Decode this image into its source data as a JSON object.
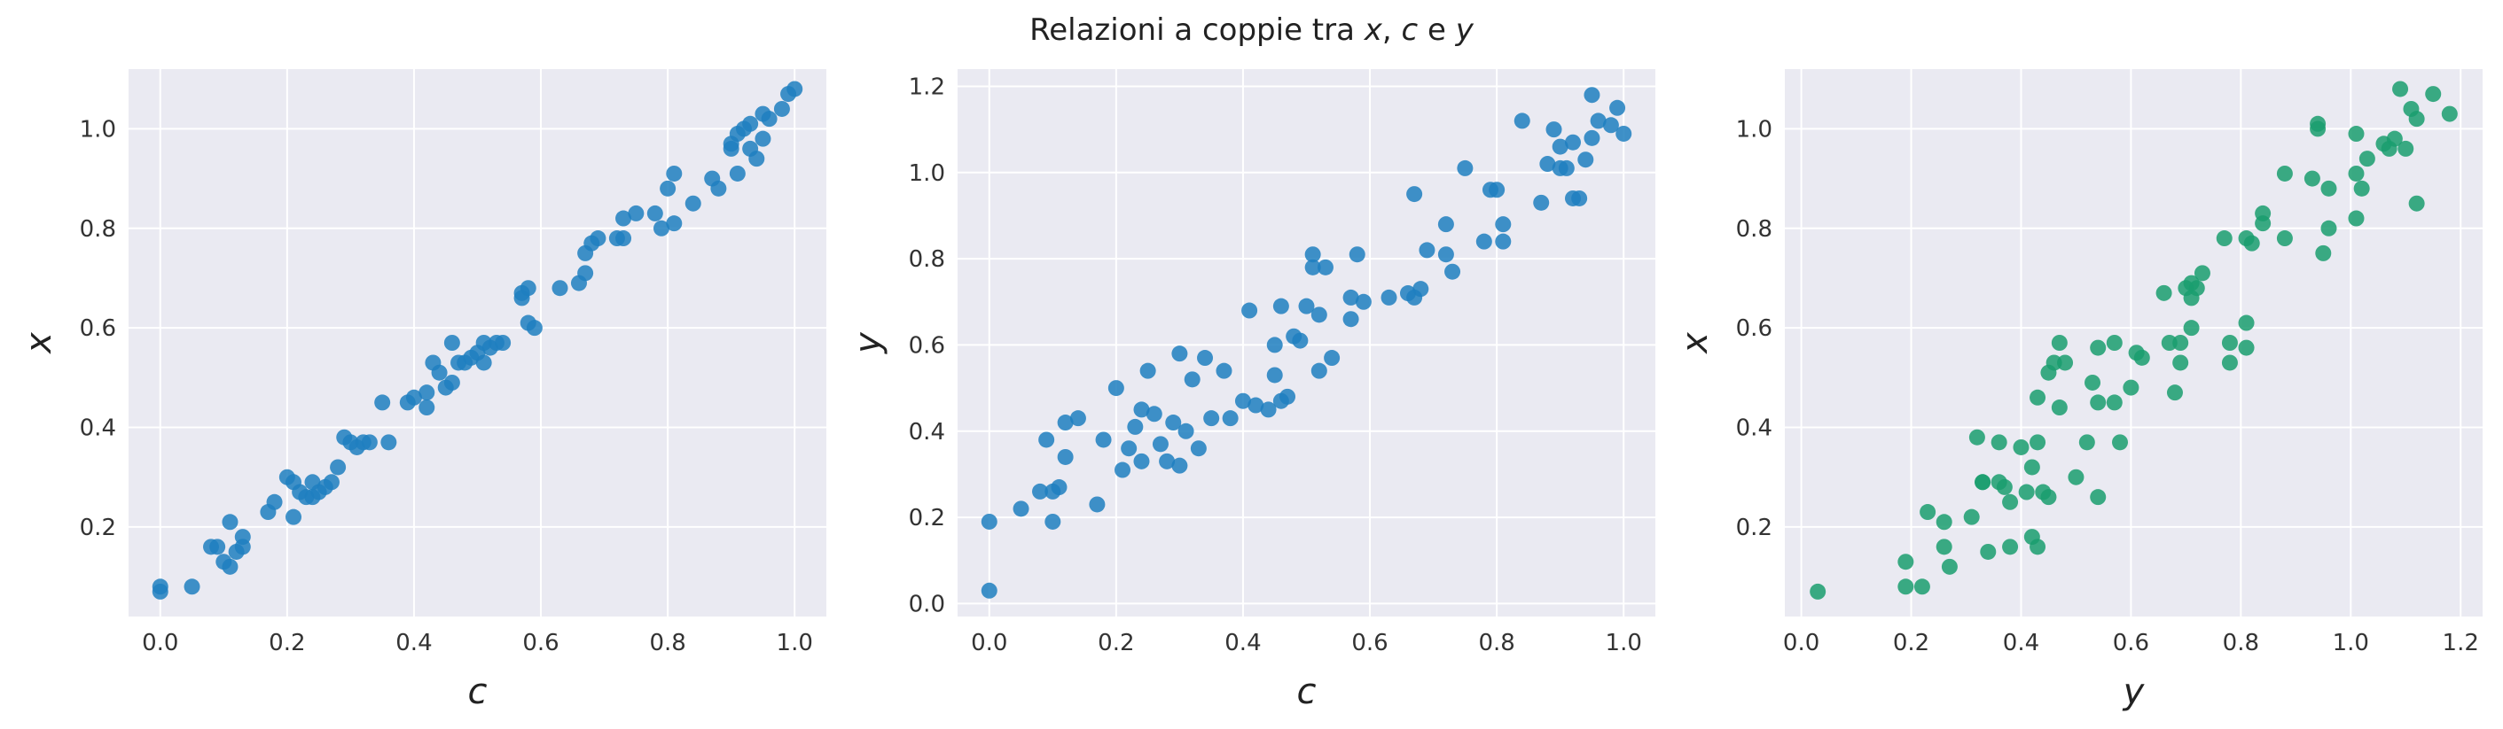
{
  "title": {
    "prefix": "Relazioni a coppie tra ",
    "var1": "x",
    "sep1": ", ",
    "var2": "c",
    "sep2": " e ",
    "var3": "y"
  },
  "colors": {
    "background": "#eaeaf2",
    "grid": "#ffffff",
    "blue": "#1f7fbf",
    "green": "#1a9e6e"
  },
  "chart_data": [
    {
      "type": "scatter",
      "title": "",
      "xlabel": "c",
      "ylabel": "x",
      "xlim": [
        -0.05,
        1.05
      ],
      "ylim": [
        0.02,
        1.12
      ],
      "xticks": [
        "0.0",
        "0.2",
        "0.4",
        "0.6",
        "0.8",
        "1.0"
      ],
      "yticks": [
        "0.2",
        "0.4",
        "0.6",
        "0.8",
        "1.0"
      ],
      "color": "#1f7fbf",
      "grid": true,
      "points": [
        [
          0.0,
          0.07
        ],
        [
          0.0,
          0.08
        ],
        [
          0.05,
          0.08
        ],
        [
          0.08,
          0.16
        ],
        [
          0.09,
          0.16
        ],
        [
          0.1,
          0.13
        ],
        [
          0.11,
          0.21
        ],
        [
          0.11,
          0.12
        ],
        [
          0.12,
          0.15
        ],
        [
          0.13,
          0.18
        ],
        [
          0.13,
          0.16
        ],
        [
          0.17,
          0.23
        ],
        [
          0.18,
          0.25
        ],
        [
          0.2,
          0.3
        ],
        [
          0.21,
          0.22
        ],
        [
          0.21,
          0.29
        ],
        [
          0.22,
          0.27
        ],
        [
          0.23,
          0.26
        ],
        [
          0.24,
          0.29
        ],
        [
          0.24,
          0.26
        ],
        [
          0.25,
          0.27
        ],
        [
          0.26,
          0.28
        ],
        [
          0.27,
          0.29
        ],
        [
          0.28,
          0.32
        ],
        [
          0.29,
          0.38
        ],
        [
          0.3,
          0.37
        ],
        [
          0.31,
          0.36
        ],
        [
          0.32,
          0.37
        ],
        [
          0.33,
          0.37
        ],
        [
          0.35,
          0.45
        ],
        [
          0.36,
          0.37
        ],
        [
          0.39,
          0.45
        ],
        [
          0.4,
          0.46
        ],
        [
          0.42,
          0.44
        ],
        [
          0.42,
          0.47
        ],
        [
          0.43,
          0.53
        ],
        [
          0.44,
          0.51
        ],
        [
          0.45,
          0.48
        ],
        [
          0.46,
          0.49
        ],
        [
          0.46,
          0.57
        ],
        [
          0.47,
          0.53
        ],
        [
          0.48,
          0.53
        ],
        [
          0.49,
          0.54
        ],
        [
          0.5,
          0.55
        ],
        [
          0.51,
          0.57
        ],
        [
          0.51,
          0.53
        ],
        [
          0.52,
          0.56
        ],
        [
          0.53,
          0.57
        ],
        [
          0.54,
          0.57
        ],
        [
          0.57,
          0.66
        ],
        [
          0.57,
          0.67
        ],
        [
          0.58,
          0.61
        ],
        [
          0.58,
          0.68
        ],
        [
          0.59,
          0.6
        ],
        [
          0.63,
          0.68
        ],
        [
          0.66,
          0.69
        ],
        [
          0.67,
          0.75
        ],
        [
          0.67,
          0.71
        ],
        [
          0.68,
          0.77
        ],
        [
          0.69,
          0.78
        ],
        [
          0.72,
          0.78
        ],
        [
          0.73,
          0.78
        ],
        [
          0.73,
          0.82
        ],
        [
          0.75,
          0.83
        ],
        [
          0.78,
          0.83
        ],
        [
          0.79,
          0.8
        ],
        [
          0.8,
          0.88
        ],
        [
          0.81,
          0.81
        ],
        [
          0.81,
          0.91
        ],
        [
          0.84,
          0.85
        ],
        [
          0.87,
          0.9
        ],
        [
          0.88,
          0.88
        ],
        [
          0.9,
          0.96
        ],
        [
          0.9,
          0.97
        ],
        [
          0.91,
          0.91
        ],
        [
          0.91,
          0.99
        ],
        [
          0.92,
          1.0
        ],
        [
          0.93,
          0.96
        ],
        [
          0.93,
          1.01
        ],
        [
          0.94,
          0.94
        ],
        [
          0.95,
          0.98
        ],
        [
          0.95,
          1.03
        ],
        [
          0.96,
          1.02
        ],
        [
          0.98,
          1.04
        ],
        [
          0.99,
          1.07
        ],
        [
          1.0,
          1.08
        ]
      ]
    },
    {
      "type": "scatter",
      "title": "",
      "xlabel": "c",
      "ylabel": "y",
      "xlim": [
        -0.05,
        1.05
      ],
      "ylim": [
        -0.03,
        1.24
      ],
      "xticks": [
        "0.0",
        "0.2",
        "0.4",
        "0.6",
        "0.8",
        "1.0"
      ],
      "yticks": [
        "0.0",
        "0.2",
        "0.4",
        "0.6",
        "0.8",
        "1.0",
        "1.2"
      ],
      "color": "#1f7fbf",
      "grid": true,
      "points": [
        [
          0.0,
          0.03
        ],
        [
          0.0,
          0.19
        ],
        [
          0.05,
          0.22
        ],
        [
          0.08,
          0.26
        ],
        [
          0.09,
          0.38
        ],
        [
          0.1,
          0.19
        ],
        [
          0.1,
          0.26
        ],
        [
          0.11,
          0.27
        ],
        [
          0.12,
          0.34
        ],
        [
          0.12,
          0.42
        ],
        [
          0.14,
          0.43
        ],
        [
          0.17,
          0.23
        ],
        [
          0.18,
          0.38
        ],
        [
          0.2,
          0.5
        ],
        [
          0.21,
          0.31
        ],
        [
          0.22,
          0.36
        ],
        [
          0.23,
          0.41
        ],
        [
          0.24,
          0.45
        ],
        [
          0.24,
          0.33
        ],
        [
          0.25,
          0.54
        ],
        [
          0.26,
          0.44
        ],
        [
          0.27,
          0.37
        ],
        [
          0.28,
          0.33
        ],
        [
          0.29,
          0.42
        ],
        [
          0.3,
          0.32
        ],
        [
          0.3,
          0.58
        ],
        [
          0.31,
          0.4
        ],
        [
          0.32,
          0.52
        ],
        [
          0.33,
          0.36
        ],
        [
          0.34,
          0.57
        ],
        [
          0.35,
          0.43
        ],
        [
          0.37,
          0.54
        ],
        [
          0.38,
          0.43
        ],
        [
          0.4,
          0.47
        ],
        [
          0.41,
          0.68
        ],
        [
          0.42,
          0.46
        ],
        [
          0.44,
          0.45
        ],
        [
          0.45,
          0.6
        ],
        [
          0.45,
          0.53
        ],
        [
          0.46,
          0.47
        ],
        [
          0.46,
          0.69
        ],
        [
          0.47,
          0.48
        ],
        [
          0.48,
          0.62
        ],
        [
          0.49,
          0.61
        ],
        [
          0.5,
          0.69
        ],
        [
          0.51,
          0.78
        ],
        [
          0.51,
          0.81
        ],
        [
          0.52,
          0.54
        ],
        [
          0.52,
          0.67
        ],
        [
          0.53,
          0.78
        ],
        [
          0.54,
          0.57
        ],
        [
          0.57,
          0.71
        ],
        [
          0.57,
          0.66
        ],
        [
          0.58,
          0.81
        ],
        [
          0.59,
          0.7
        ],
        [
          0.63,
          0.71
        ],
        [
          0.66,
          0.72
        ],
        [
          0.67,
          0.71
        ],
        [
          0.67,
          0.95
        ],
        [
          0.68,
          0.73
        ],
        [
          0.69,
          0.82
        ],
        [
          0.72,
          0.88
        ],
        [
          0.72,
          0.81
        ],
        [
          0.73,
          0.77
        ],
        [
          0.75,
          1.01
        ],
        [
          0.78,
          0.84
        ],
        [
          0.79,
          0.96
        ],
        [
          0.8,
          0.96
        ],
        [
          0.81,
          0.84
        ],
        [
          0.81,
          0.88
        ],
        [
          0.84,
          1.12
        ],
        [
          0.87,
          0.93
        ],
        [
          0.88,
          1.02
        ],
        [
          0.89,
          1.1
        ],
        [
          0.9,
          1.06
        ],
        [
          0.9,
          1.01
        ],
        [
          0.91,
          1.01
        ],
        [
          0.92,
          0.94
        ],
        [
          0.92,
          1.07
        ],
        [
          0.93,
          0.94
        ],
        [
          0.94,
          1.03
        ],
        [
          0.95,
          1.08
        ],
        [
          0.95,
          1.18
        ],
        [
          0.96,
          1.12
        ],
        [
          0.98,
          1.11
        ],
        [
          0.99,
          1.15
        ],
        [
          1.0,
          1.09
        ]
      ]
    },
    {
      "type": "scatter",
      "title": "",
      "xlabel": "y",
      "ylabel": "x",
      "xlim": [
        -0.03,
        1.24
      ],
      "ylim": [
        0.02,
        1.12
      ],
      "xticks": [
        "0.0",
        "0.2",
        "0.4",
        "0.6",
        "0.8",
        "1.0",
        "1.2"
      ],
      "yticks": [
        "0.2",
        "0.4",
        "0.6",
        "0.8",
        "1.0"
      ],
      "color": "#1a9e6e",
      "grid": true,
      "points": [
        [
          0.03,
          0.07
        ],
        [
          0.19,
          0.08
        ],
        [
          0.22,
          0.08
        ],
        [
          0.26,
          0.16
        ],
        [
          0.38,
          0.16
        ],
        [
          0.19,
          0.13
        ],
        [
          0.26,
          0.21
        ],
        [
          0.27,
          0.12
        ],
        [
          0.34,
          0.15
        ],
        [
          0.42,
          0.18
        ],
        [
          0.43,
          0.16
        ],
        [
          0.23,
          0.23
        ],
        [
          0.38,
          0.25
        ],
        [
          0.5,
          0.3
        ],
        [
          0.31,
          0.22
        ],
        [
          0.36,
          0.29
        ],
        [
          0.41,
          0.27
        ],
        [
          0.45,
          0.26
        ],
        [
          0.33,
          0.29
        ],
        [
          0.54,
          0.26
        ],
        [
          0.44,
          0.27
        ],
        [
          0.37,
          0.28
        ],
        [
          0.33,
          0.29
        ],
        [
          0.42,
          0.32
        ],
        [
          0.32,
          0.38
        ],
        [
          0.58,
          0.37
        ],
        [
          0.4,
          0.36
        ],
        [
          0.52,
          0.37
        ],
        [
          0.36,
          0.37
        ],
        [
          0.57,
          0.45
        ],
        [
          0.43,
          0.37
        ],
        [
          0.54,
          0.45
        ],
        [
          0.43,
          0.46
        ],
        [
          0.47,
          0.44
        ],
        [
          0.68,
          0.47
        ],
        [
          0.46,
          0.53
        ],
        [
          0.45,
          0.51
        ],
        [
          0.6,
          0.48
        ],
        [
          0.53,
          0.49
        ],
        [
          0.47,
          0.57
        ],
        [
          0.69,
          0.53
        ],
        [
          0.48,
          0.53
        ],
        [
          0.62,
          0.54
        ],
        [
          0.61,
          0.55
        ],
        [
          0.69,
          0.57
        ],
        [
          0.78,
          0.53
        ],
        [
          0.81,
          0.56
        ],
        [
          0.54,
          0.56
        ],
        [
          0.67,
          0.57
        ],
        [
          0.78,
          0.57
        ],
        [
          0.57,
          0.57
        ],
        [
          0.71,
          0.66
        ],
        [
          0.66,
          0.67
        ],
        [
          0.81,
          0.61
        ],
        [
          0.7,
          0.68
        ],
        [
          0.71,
          0.6
        ],
        [
          0.72,
          0.68
        ],
        [
          0.71,
          0.69
        ],
        [
          0.95,
          0.75
        ],
        [
          0.73,
          0.71
        ],
        [
          0.82,
          0.77
        ],
        [
          0.88,
          0.78
        ],
        [
          0.81,
          0.78
        ],
        [
          0.77,
          0.78
        ],
        [
          1.01,
          0.82
        ],
        [
          0.84,
          0.83
        ],
        [
          0.96,
          0.8
        ],
        [
          0.96,
          0.88
        ],
        [
          0.84,
          0.81
        ],
        [
          0.88,
          0.91
        ],
        [
          1.12,
          0.85
        ],
        [
          0.93,
          0.9
        ],
        [
          1.02,
          0.88
        ],
        [
          1.1,
          0.96
        ],
        [
          1.06,
          0.97
        ],
        [
          1.01,
          0.91
        ],
        [
          1.01,
          0.99
        ],
        [
          0.94,
          1.0
        ],
        [
          1.07,
          0.96
        ],
        [
          0.94,
          1.01
        ],
        [
          1.03,
          0.94
        ],
        [
          1.08,
          0.98
        ],
        [
          1.18,
          1.03
        ],
        [
          1.12,
          1.02
        ],
        [
          1.11,
          1.04
        ],
        [
          1.15,
          1.07
        ],
        [
          1.09,
          1.08
        ]
      ]
    }
  ]
}
